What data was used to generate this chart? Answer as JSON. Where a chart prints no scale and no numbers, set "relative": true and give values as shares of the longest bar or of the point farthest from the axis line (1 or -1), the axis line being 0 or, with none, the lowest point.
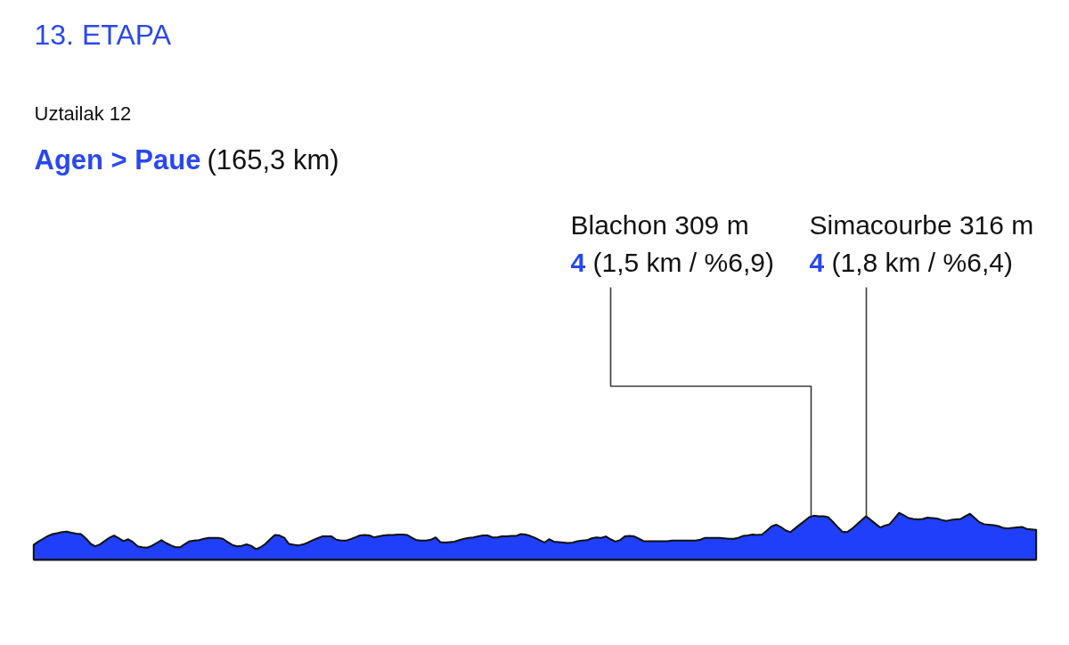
{
  "chart_data": {
    "type": "area",
    "title": "13. ETAPA",
    "subtitle": "Uztailak 12\nAgen > Paue (165,3 km)",
    "relative": true,
    "categories": [
      null,
      null,
      null,
      null,
      null,
      null,
      null,
      null,
      null,
      null,
      null,
      null,
      null,
      null,
      null,
      null,
      null,
      null,
      null,
      null,
      null,
      null,
      null,
      null,
      null,
      null,
      null,
      null,
      null,
      null,
      null,
      null,
      null,
      null,
      null,
      null,
      null,
      null,
      null,
      null,
      null,
      null,
      null,
      null,
      null,
      null,
      null,
      null,
      null,
      null,
      null,
      null,
      null,
      null,
      null,
      null,
      null,
      null,
      null,
      null,
      null,
      null,
      null,
      null,
      null,
      null,
      null,
      null,
      null,
      null,
      null,
      null,
      null,
      null,
      null,
      null,
      null,
      null,
      null,
      null,
      null,
      null,
      null,
      null,
      null,
      null,
      null,
      null,
      null,
      null,
      null,
      null,
      null,
      null,
      null,
      null,
      null,
      null,
      null,
      null,
      null,
      null,
      null,
      null,
      null,
      null,
      null,
      null,
      null,
      null,
      null,
      null,
      null,
      null,
      null,
      null,
      null,
      null,
      null,
      null,
      null,
      null,
      null,
      null,
      null,
      null,
      null,
      null,
      null,
      null,
      null,
      null,
      null,
      null,
      null,
      null,
      null,
      null,
      null,
      null,
      null,
      null,
      null,
      null,
      null,
      null,
      null,
      null,
      null,
      null,
      null,
      null,
      null,
      null,
      null,
      null,
      null,
      null,
      null,
      null,
      null,
      null,
      null,
      null,
      null,
      null,
      null,
      null,
      null,
      null,
      null,
      null,
      null,
      null,
      null,
      null,
      null,
      null,
      null,
      null,
      null,
      null,
      null,
      null,
      null,
      null,
      null,
      null,
      null,
      null,
      null,
      null,
      null,
      null,
      null,
      null,
      null,
      null,
      null,
      null,
      null,
      null,
      null,
      null,
      null,
      null,
      null,
      null,
      null,
      null,
      null,
      null,
      null
    ],
    "series": [
      {
        "color": "#1f3ffb",
        "values": [
          0.32,
          0.39,
          0.45,
          0.51,
          0.55,
          0.57,
          0.59,
          0.6,
          0.58,
          0.56,
          0.55,
          0.46,
          0.35,
          0.29,
          0.33,
          0.4,
          0.47,
          0.52,
          0.46,
          0.4,
          0.44,
          0.38,
          0.29,
          0.27,
          0.26,
          0.3,
          0.36,
          0.42,
          0.36,
          0.31,
          0.27,
          0.27,
          0.34,
          0.4,
          0.41,
          0.42,
          0.45,
          0.47,
          0.47,
          0.47,
          0.45,
          0.38,
          0.32,
          0.29,
          0.3,
          0.33,
          0.3,
          0.23,
          0.27,
          0.34,
          0.44,
          0.53,
          0.52,
          0.47,
          0.34,
          0.32,
          0.31,
          0.33,
          0.37,
          0.42,
          0.46,
          0.5,
          0.5,
          0.5,
          0.43,
          0.41,
          0.41,
          0.44,
          0.48,
          0.52,
          0.53,
          0.52,
          0.48,
          0.5,
          0.52,
          0.53,
          0.53,
          0.54,
          0.54,
          0.53,
          0.47,
          0.42,
          0.41,
          0.41,
          0.43,
          0.48,
          0.38,
          0.37,
          0.38,
          0.39,
          0.42,
          0.45,
          0.47,
          0.48,
          0.5,
          0.52,
          0.52,
          0.48,
          0.48,
          0.5,
          0.5,
          0.51,
          0.51,
          0.55,
          0.54,
          0.51,
          0.47,
          0.42,
          0.37,
          0.44,
          0.39,
          0.38,
          0.37,
          0.36,
          0.37,
          0.4,
          0.41,
          0.42,
          0.46,
          0.48,
          0.47,
          0.5,
          0.44,
          0.39,
          0.42,
          0.5,
          0.51,
          0.5,
          0.45,
          0.4,
          0.4,
          0.4,
          0.4,
          0.4,
          0.4,
          0.41,
          0.41,
          0.41,
          0.41,
          0.41,
          0.41,
          0.43,
          0.47,
          0.47,
          0.47,
          0.47,
          0.46,
          0.45,
          0.45,
          0.47,
          0.51,
          0.52,
          0.54,
          0.53,
          0.54,
          0.62,
          0.71,
          0.75,
          0.7,
          0.63,
          0.59,
          0.67,
          0.75,
          0.83,
          0.91,
          0.94,
          0.93,
          0.93,
          0.91,
          0.81,
          0.7,
          0.6,
          0.59,
          0.66,
          0.75,
          0.84,
          0.93,
          0.85,
          0.77,
          0.69,
          0.73,
          0.76,
          0.88,
          1.0,
          0.95,
          0.89,
          0.87,
          0.86,
          0.87,
          0.9,
          0.89,
          0.88,
          0.85,
          0.83,
          0.85,
          0.86,
          0.87,
          0.93,
          0.98,
          0.89,
          0.8,
          0.76,
          0.75,
          0.74,
          0.72,
          0.68,
          0.67,
          0.68,
          0.69,
          0.7,
          0.66,
          0.65,
          0.64
        ]
      }
    ],
    "annotations": [
      "Blachon 309 m\n4 (1,5 km / %6,9)",
      "Simacourbe 316 m\n4 (1,8 km / %6,4)"
    ]
  }
}
